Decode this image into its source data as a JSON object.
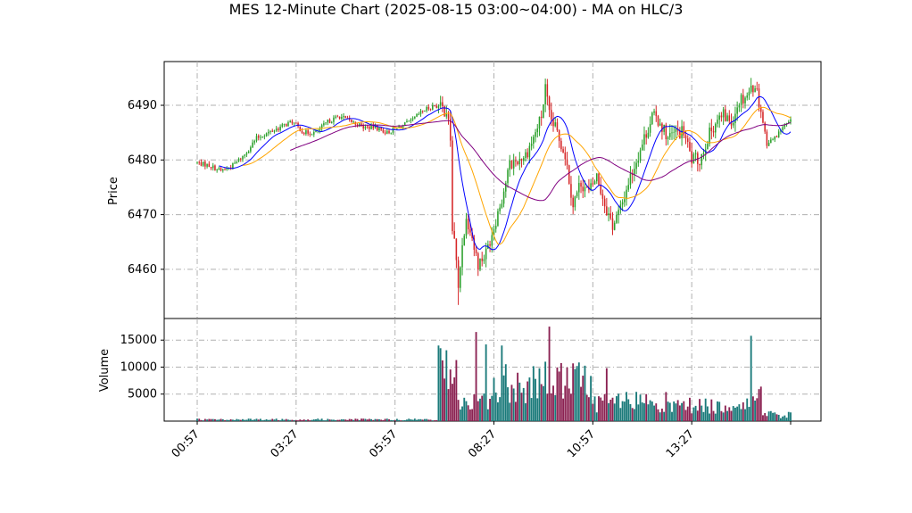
{
  "chart_data": {
    "type": "candlestick",
    "title": "MES 12-Minute Chart (2025-08-15 03:00~04:00) - MA on HLC/3",
    "price_panel": {
      "ylabel": "Price",
      "ylim": [
        6451,
        6498
      ],
      "yticks": [
        "6460",
        "6470",
        "6480",
        "6490"
      ],
      "grid": true
    },
    "volume_panel": {
      "ylabel": "Volume",
      "ylim": [
        0,
        19000
      ],
      "yticks": [
        "5000",
        "10000",
        "15000"
      ],
      "grid": true
    },
    "xticks": [
      "00:57",
      "03:27",
      "05:57",
      "08:27",
      "10:57",
      "13:27"
    ],
    "up_color": "#2ca02c",
    "down_color": "#d62728",
    "vol_up_color": "#1a7a7a",
    "vol_down_color": "#8b2252",
    "price_path_anchors": [
      [
        0,
        6479.5
      ],
      [
        6,
        6479
      ],
      [
        12,
        6478
      ],
      [
        18,
        6479
      ],
      [
        24,
        6481
      ],
      [
        30,
        6484
      ],
      [
        36,
        6485
      ],
      [
        42,
        6486
      ],
      [
        48,
        6487
      ],
      [
        54,
        6485
      ],
      [
        60,
        6485
      ],
      [
        66,
        6487
      ],
      [
        72,
        6488
      ],
      [
        78,
        6487
      ],
      [
        84,
        6486
      ],
      [
        90,
        6486
      ],
      [
        96,
        6485
      ],
      [
        102,
        6486
      ],
      [
        108,
        6487
      ],
      [
        114,
        6489
      ],
      [
        120,
        6490
      ],
      [
        126,
        6489
      ],
      [
        128,
        6484
      ],
      [
        130,
        6466
      ],
      [
        132,
        6456
      ],
      [
        134,
        6465
      ],
      [
        136,
        6469
      ],
      [
        138,
        6468
      ],
      [
        140,
        6464
      ],
      [
        142,
        6461
      ],
      [
        146,
        6463
      ],
      [
        150,
        6468
      ],
      [
        154,
        6473
      ],
      [
        158,
        6479
      ],
      [
        162,
        6480
      ],
      [
        166,
        6481
      ],
      [
        170,
        6484
      ],
      [
        174,
        6488
      ],
      [
        176,
        6493
      ],
      [
        178,
        6488
      ],
      [
        182,
        6485
      ],
      [
        186,
        6481
      ],
      [
        190,
        6472
      ],
      [
        194,
        6476
      ],
      [
        198,
        6474
      ],
      [
        202,
        6477
      ],
      [
        206,
        6472
      ],
      [
        210,
        6468
      ],
      [
        214,
        6471
      ],
      [
        218,
        6476
      ],
      [
        222,
        6480
      ],
      [
        226,
        6484
      ],
      [
        230,
        6488
      ],
      [
        234,
        6487
      ],
      [
        238,
        6484
      ],
      [
        242,
        6485
      ],
      [
        246,
        6485
      ],
      [
        250,
        6480
      ],
      [
        254,
        6480
      ],
      [
        258,
        6484
      ],
      [
        262,
        6487
      ],
      [
        266,
        6488
      ],
      [
        270,
        6487
      ],
      [
        274,
        6491
      ],
      [
        278,
        6492
      ],
      [
        282,
        6494
      ],
      [
        285,
        6489
      ],
      [
        288,
        6483
      ],
      [
        292,
        6484
      ],
      [
        296,
        6486
      ],
      [
        300,
        6487
      ]
    ],
    "volume_regime": [
      {
        "from": 0,
        "to": 122,
        "level": 300
      },
      {
        "from": 122,
        "to": 132,
        "level": 9000
      },
      {
        "from": 132,
        "to": 150,
        "level": 3500
      },
      {
        "from": 150,
        "to": 176,
        "level": 7000
      },
      {
        "from": 176,
        "to": 200,
        "level": 7500
      },
      {
        "from": 200,
        "to": 240,
        "level": 3500
      },
      {
        "from": 240,
        "to": 280,
        "level": 2800
      },
      {
        "from": 280,
        "to": 286,
        "level": 6000
      },
      {
        "from": 286,
        "to": 301,
        "level": 1200
      }
    ],
    "ma_series": [
      {
        "period": 6,
        "color": "#0000ff"
      },
      {
        "period": 12,
        "color": "#ffa500"
      },
      {
        "period": 24,
        "color": "#800080"
      }
    ],
    "num_bars": 301,
    "seed": 7
  }
}
